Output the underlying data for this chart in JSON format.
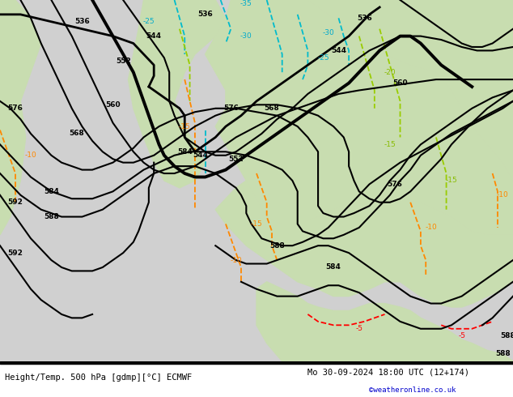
{
  "title_left": "Height/Temp. 500 hPa [gdmp][°C] ECMWF",
  "title_right": "Mo 30-09-2024 18:00 UTC (12+174)",
  "watermark": "©weatheronline.co.uk",
  "bg_sea": "#d0d0d0",
  "bg_land": "#c8ddb0",
  "figsize": [
    6.34,
    4.9
  ],
  "dpi": 100
}
